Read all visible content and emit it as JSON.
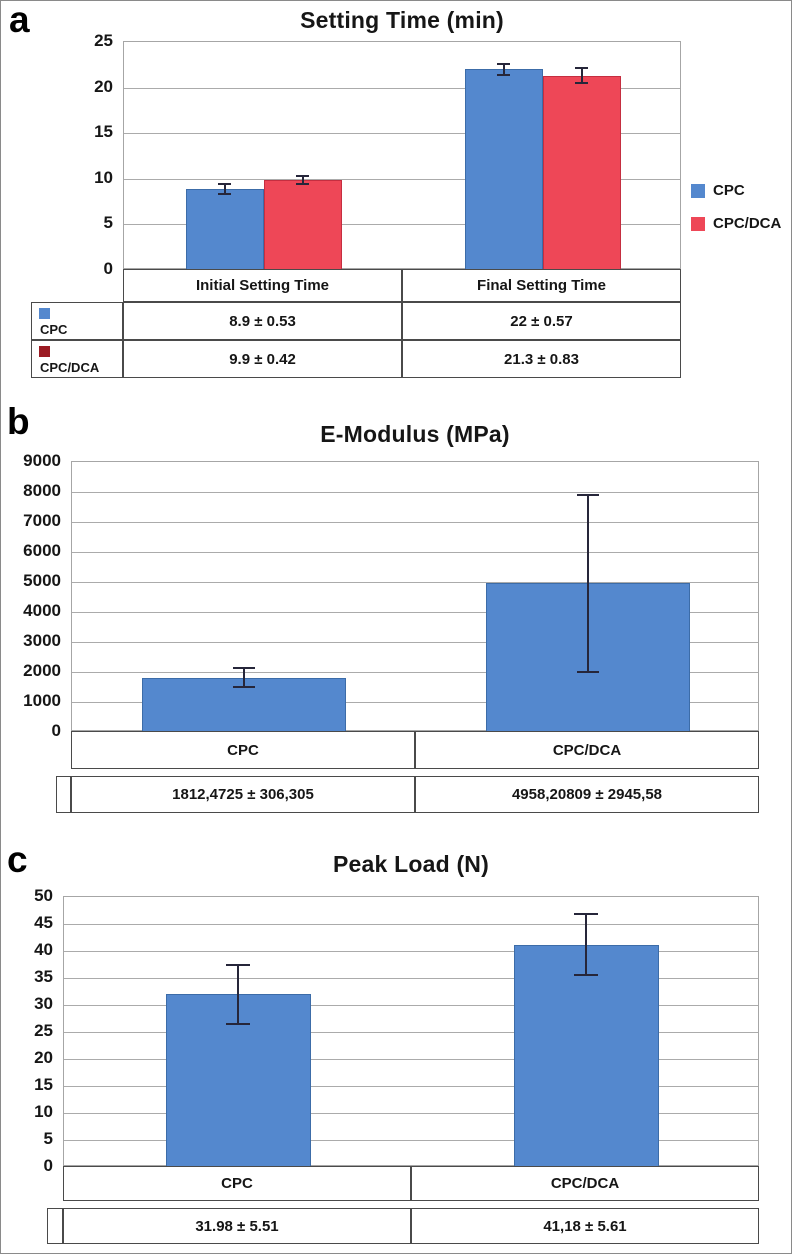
{
  "chart_data": [
    {
      "type": "bar",
      "panel_label": "a",
      "title": "Setting Time (min)",
      "xlabel": "",
      "ylabel": "",
      "categories": [
        "Initial Setting Time",
        "Final Setting Time"
      ],
      "series": [
        {
          "name": "CPC",
          "color": "#5488ce",
          "border_color": "#3c6ca8",
          "values": [
            8.9,
            22
          ],
          "errors": [
            0.53,
            0.57
          ]
        },
        {
          "name": "CPC/DCA",
          "color": "#ee4757",
          "border_color": "#c52e40",
          "values": [
            9.9,
            21.3
          ],
          "errors": [
            0.42,
            0.83
          ]
        }
      ],
      "ylim": [
        0,
        25
      ],
      "ytick_step": 5,
      "grid": true,
      "legend_position": "right",
      "legend": [
        "CPC",
        "CPC/DCA"
      ],
      "table": {
        "rows": [
          {
            "name": "CPC",
            "marker_color": "#5488ce",
            "cells": [
              "8.9 ± 0.53",
              "22 ± 0.57"
            ]
          },
          {
            "name": "CPC/DCA",
            "marker_color": "#9b1b23",
            "cells": [
              "9.9 ± 0.42",
              "21.3 ± 0.83"
            ]
          }
        ]
      }
    },
    {
      "type": "bar",
      "panel_label": "b",
      "title": "E-Modulus (MPa)",
      "xlabel": "",
      "ylabel": "",
      "categories": [
        "CPC",
        "CPC/DCA"
      ],
      "series": [
        {
          "name": "",
          "color": "#5488ce",
          "border_color": "#3c6ca8",
          "values": [
            1812.4725,
            4958.20809
          ],
          "errors": [
            306.305,
            2945.58
          ]
        }
      ],
      "ylim": [
        0,
        9000
      ],
      "ytick_step": 1000,
      "grid": true,
      "legend_position": "none",
      "value_row": [
        "1812,4725 ±  306,305",
        "4958,20809 ±  2945,58"
      ]
    },
    {
      "type": "bar",
      "panel_label": "c",
      "title": "Peak Load (N)",
      "xlabel": "",
      "ylabel": "",
      "categories": [
        "CPC",
        "CPC/DCA"
      ],
      "series": [
        {
          "name": "",
          "color": "#5488ce",
          "border_color": "#3c6ca8",
          "values": [
            31.98,
            41.18
          ],
          "errors": [
            5.51,
            5.61
          ]
        }
      ],
      "ylim": [
        0,
        50
      ],
      "ytick_step": 5,
      "grid": true,
      "legend_position": "none",
      "value_row": [
        "31.98 ± 5.51",
        "41,18 ± 5.61"
      ]
    }
  ]
}
